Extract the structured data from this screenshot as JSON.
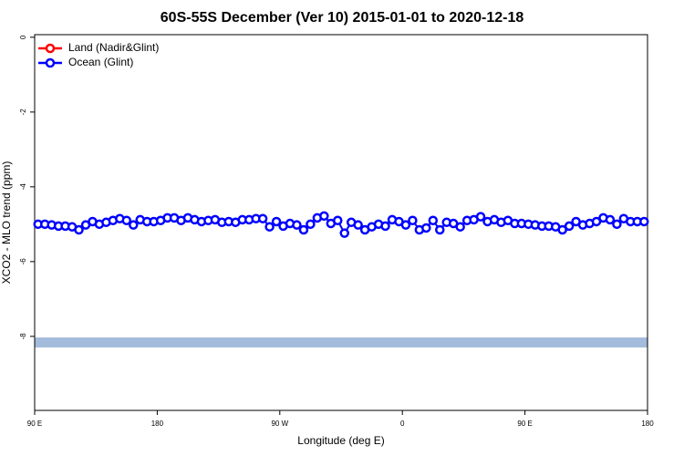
{
  "chart_data": {
    "type": "line",
    "title": "60S-55S December (Ver 10)   2015-01-01 to 2020-12-18",
    "x_label": "Longitude (deg E)",
    "y_label": "XCO2 - MLO trend (ppm)",
    "x": [
      92.5,
      97.5,
      102.5,
      107.5,
      112.5,
      117.5,
      122.5,
      127.5,
      132.5,
      137.5,
      142.5,
      147.5,
      152.5,
      157.5,
      162.5,
      167.5,
      172.5,
      177.5,
      182.5,
      187.5,
      192.5,
      197.5,
      202.5,
      207.5,
      212.5,
      217.5,
      222.5,
      227.5,
      232.5,
      237.5,
      242.5,
      247.5,
      252.5,
      257.5,
      262.5,
      267.5,
      272.5,
      277.5,
      282.5,
      287.5,
      292.5,
      297.5,
      302.5,
      307.5,
      312.5,
      317.5,
      322.5,
      327.5,
      332.5,
      337.5,
      342.5,
      347.5,
      352.5,
      357.5,
      362.5,
      367.5,
      372.5,
      377.5,
      382.5,
      387.5,
      392.5,
      397.5,
      402.5,
      407.5,
      412.5,
      417.5,
      422.5,
      427.5,
      432.5,
      437.5,
      442.5,
      447.5,
      452.5,
      457.5,
      462.5,
      467.5,
      472.5,
      477.5,
      482.5,
      487.5,
      492.5,
      497.5,
      502.5,
      507.5,
      512.5,
      517.5,
      522.5,
      527.5,
      532.5,
      537.5
    ],
    "series": [
      {
        "name": "Land (Nadir&Glint)",
        "color": "#ff0000",
        "values": [
          null,
          null,
          null,
          null,
          null,
          null,
          null,
          null,
          null,
          null,
          null,
          null,
          null,
          null,
          null,
          null,
          null,
          null,
          null,
          null,
          null,
          null,
          null,
          null,
          null,
          null,
          null,
          null,
          null,
          null,
          null,
          null,
          null,
          null,
          null,
          null,
          null,
          null,
          null,
          null,
          null,
          null,
          null,
          null,
          null,
          null,
          null,
          null,
          null,
          null,
          null,
          null,
          null,
          null,
          null,
          null,
          null,
          null,
          null,
          null,
          null,
          null,
          null,
          null,
          null,
          null,
          null,
          null,
          null,
          null,
          null,
          null,
          null,
          null,
          null,
          null,
          null,
          null,
          null,
          null,
          null,
          null,
          null,
          null,
          null,
          null,
          null,
          null,
          null,
          null
        ]
      },
      {
        "name": "Ocean (Glint)",
        "color": "#0000ff",
        "values": [
          -5.0,
          -5.0,
          -5.02,
          -5.05,
          -5.05,
          -5.07,
          -5.15,
          -5.02,
          -4.93,
          -5.0,
          -4.95,
          -4.9,
          -4.85,
          -4.9,
          -5.02,
          -4.88,
          -4.93,
          -4.93,
          -4.9,
          -4.83,
          -4.83,
          -4.9,
          -4.83,
          -4.88,
          -4.93,
          -4.9,
          -4.88,
          -4.95,
          -4.93,
          -4.95,
          -4.88,
          -4.88,
          -4.85,
          -4.85,
          -5.07,
          -4.93,
          -5.05,
          -4.98,
          -5.02,
          -5.15,
          -5.0,
          -4.83,
          -4.78,
          -4.98,
          -4.9,
          -5.24,
          -4.95,
          -5.02,
          -5.15,
          -5.07,
          -5.0,
          -5.05,
          -4.88,
          -4.93,
          -5.02,
          -4.9,
          -5.15,
          -5.1,
          -4.9,
          -5.15,
          -4.95,
          -4.98,
          -5.07,
          -4.9,
          -4.88,
          -4.8,
          -4.93,
          -4.88,
          -4.95,
          -4.9,
          -4.98,
          -4.98,
          -5.0,
          -5.02,
          -5.05,
          -5.05,
          -5.07,
          -5.15,
          -5.05,
          -4.93,
          -5.02,
          -4.98,
          -4.93,
          -4.83,
          -4.88,
          -5.0,
          -4.85,
          -4.93,
          -4.93,
          -4.93
        ]
      }
    ],
    "xlim": [
      90,
      540
    ],
    "ylim": [
      -9.98,
      0.07
    ],
    "xticks": [
      {
        "value": 90,
        "label": "90 E"
      },
      180,
      {
        "value": 270,
        "label": "90 W"
      },
      {
        "value": 360,
        "label": "0"
      },
      {
        "value": 450,
        "label": "90 E"
      },
      {
        "value": 540,
        "label": "180"
      }
    ],
    "yticks": [
      0,
      -2,
      -4,
      -6,
      -8
    ],
    "legend": "top-left"
  }
}
